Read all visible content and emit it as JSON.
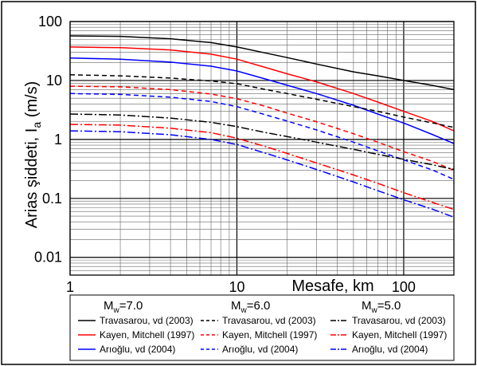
{
  "chart_data": {
    "type": "line",
    "xlabel": "Mesafe, km",
    "ylabel_main": "Arias şiddeti, I",
    "ylabel_sub": "a",
    "ylabel_unit": " (m/s)",
    "x_scale": "log",
    "y_scale": "log",
    "xlim": [
      1,
      200
    ],
    "ylim": [
      0.005,
      100
    ],
    "x_ticks": [
      {
        "value": 1,
        "label": "1"
      },
      {
        "value": 10,
        "label": "10"
      },
      {
        "value": 100,
        "label": "100"
      }
    ],
    "y_ticks": [
      {
        "value": 0.01,
        "label": "0.01"
      },
      {
        "value": 0.1,
        "label": "0.1"
      },
      {
        "value": 1,
        "label": "1"
      },
      {
        "value": 10,
        "label": "10"
      },
      {
        "value": 100,
        "label": "100"
      }
    ],
    "grid": true,
    "legend_position": "bottom",
    "legend_groups": [
      {
        "prefix": "M",
        "sub": "w",
        "suffix": "=7.0"
      },
      {
        "prefix": "M",
        "sub": "w",
        "suffix": "=6.0"
      },
      {
        "prefix": "M",
        "sub": "w",
        "suffix": "=5.0"
      }
    ],
    "colors": {
      "travasarou": "#000000",
      "kayen": "#ff0000",
      "arioglu": "#0000ff"
    },
    "series": [
      {
        "name": "Travasarou, vd (2003)",
        "group": 0,
        "model": "travasarou",
        "dash": "solid",
        "x": [
          1,
          2,
          4,
          7,
          10,
          15,
          20,
          30,
          50,
          70,
          100,
          150,
          200
        ],
        "y": [
          57,
          56,
          51,
          44,
          37,
          29,
          24.5,
          19,
          14,
          12,
          10,
          8.2,
          7
        ]
      },
      {
        "name": "Kayen, Mitchell (1997)",
        "group": 0,
        "model": "kayen",
        "dash": "solid",
        "x": [
          1,
          2,
          4,
          7,
          10,
          15,
          20,
          30,
          50,
          70,
          100,
          150,
          200
        ],
        "y": [
          37,
          36,
          33,
          28,
          23,
          16.5,
          13,
          9.5,
          6,
          4.3,
          3,
          2,
          1.4
        ]
      },
      {
        "name": "Arıoğlu, vd (2004)",
        "group": 0,
        "model": "arioglu",
        "dash": "solid",
        "x": [
          1,
          2,
          4,
          7,
          10,
          15,
          20,
          30,
          50,
          70,
          100,
          150,
          200
        ],
        "y": [
          24,
          23,
          20.5,
          17.5,
          14.5,
          10.5,
          8.3,
          6,
          3.8,
          2.7,
          1.9,
          1.2,
          0.85
        ]
      },
      {
        "name": "Travasarou, vd (2003)",
        "group": 1,
        "model": "travasarou",
        "dash": "dash",
        "x": [
          1,
          2,
          4,
          7,
          10,
          15,
          20,
          30,
          50,
          70,
          100,
          150,
          200
        ],
        "y": [
          12.5,
          12,
          11,
          9.8,
          8.8,
          7,
          6,
          4.8,
          3.6,
          3,
          2.4,
          1.9,
          1.6
        ]
      },
      {
        "name": "Kayen, Mitchell (1997)",
        "group": 1,
        "model": "kayen",
        "dash": "dash",
        "x": [
          1,
          2,
          4,
          7,
          10,
          15,
          20,
          30,
          50,
          70,
          100,
          150,
          200
        ],
        "y": [
          8,
          7.8,
          7,
          5.9,
          4.9,
          3.6,
          2.8,
          2,
          1.25,
          0.9,
          0.62,
          0.42,
          0.3
        ]
      },
      {
        "name": "Arıoğlu, vd (2004)",
        "group": 1,
        "model": "arioglu",
        "dash": "dash",
        "x": [
          1,
          2,
          4,
          7,
          10,
          15,
          20,
          30,
          50,
          70,
          100,
          150,
          200
        ],
        "y": [
          6,
          5.8,
          5.2,
          4.4,
          3.6,
          2.6,
          2.05,
          1.45,
          0.9,
          0.64,
          0.45,
          0.3,
          0.21
        ]
      },
      {
        "name": "Travasarou, vd (2003)",
        "group": 2,
        "model": "travasarou",
        "dash": "dashdot",
        "x": [
          1,
          2,
          4,
          7,
          10,
          15,
          20,
          30,
          50,
          70,
          100,
          150,
          200
        ],
        "y": [
          2.7,
          2.6,
          2.3,
          1.95,
          1.65,
          1.3,
          1.12,
          0.9,
          0.68,
          0.56,
          0.46,
          0.37,
          0.31
        ]
      },
      {
        "name": "Kayen, Mitchell (1997)",
        "group": 2,
        "model": "kayen",
        "dash": "dashdot",
        "x": [
          1,
          2,
          4,
          7,
          10,
          15,
          20,
          30,
          50,
          70,
          100,
          150,
          200
        ],
        "y": [
          1.8,
          1.75,
          1.55,
          1.3,
          1.05,
          0.75,
          0.58,
          0.4,
          0.25,
          0.18,
          0.125,
          0.085,
          0.065
        ]
      },
      {
        "name": "Arıoğlu, vd (2004)",
        "group": 2,
        "model": "arioglu",
        "dash": "dashdot",
        "x": [
          1,
          2,
          4,
          7,
          10,
          15,
          20,
          30,
          50,
          70,
          100,
          150,
          200
        ],
        "y": [
          1.4,
          1.35,
          1.2,
          1.0,
          0.82,
          0.58,
          0.45,
          0.31,
          0.19,
          0.135,
          0.095,
          0.065,
          0.048
        ]
      }
    ]
  }
}
